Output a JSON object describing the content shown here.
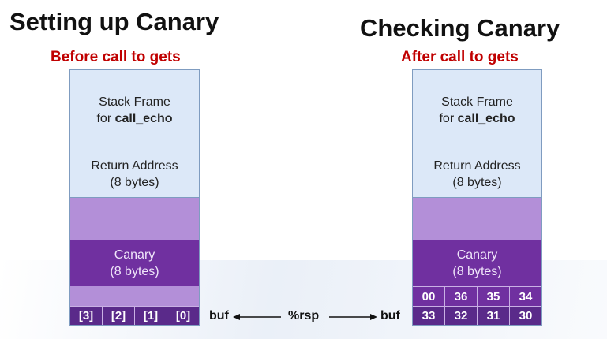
{
  "left": {
    "title": "Setting up Canary",
    "subtitle": "Before call to gets",
    "frame_line1": "Stack Frame",
    "frame_line2_prefix": "for ",
    "frame_line2_bold": "call_echo",
    "return_line1": "Return Address",
    "return_line2": "(8 bytes)",
    "canary_line1": "Canary",
    "canary_line2": "(8 bytes)",
    "buf_cells": [
      "[3]",
      "[2]",
      "[1]",
      "[0]"
    ]
  },
  "right": {
    "title": "Checking Canary",
    "subtitle": "After call to gets",
    "frame_line1": "Stack Frame",
    "frame_line2_prefix": "for ",
    "frame_line2_bold": "call_echo",
    "return_line1": "Return Address",
    "return_line2": "(8 bytes)",
    "canary_line1": "Canary",
    "canary_line2": "(8 bytes)",
    "canary_bytes": [
      "00",
      "36",
      "35",
      "34"
    ],
    "buf_bytes": [
      "33",
      "32",
      "31",
      "30"
    ]
  },
  "pointer": {
    "left_label": "buf",
    "center_label": "%rsp",
    "right_label": "buf"
  },
  "colors": {
    "frame_fill": "#dce8f8",
    "padding_fill": "#b38fd8",
    "canary_fill": "#7030a0",
    "subtitle_color": "#c00000"
  }
}
